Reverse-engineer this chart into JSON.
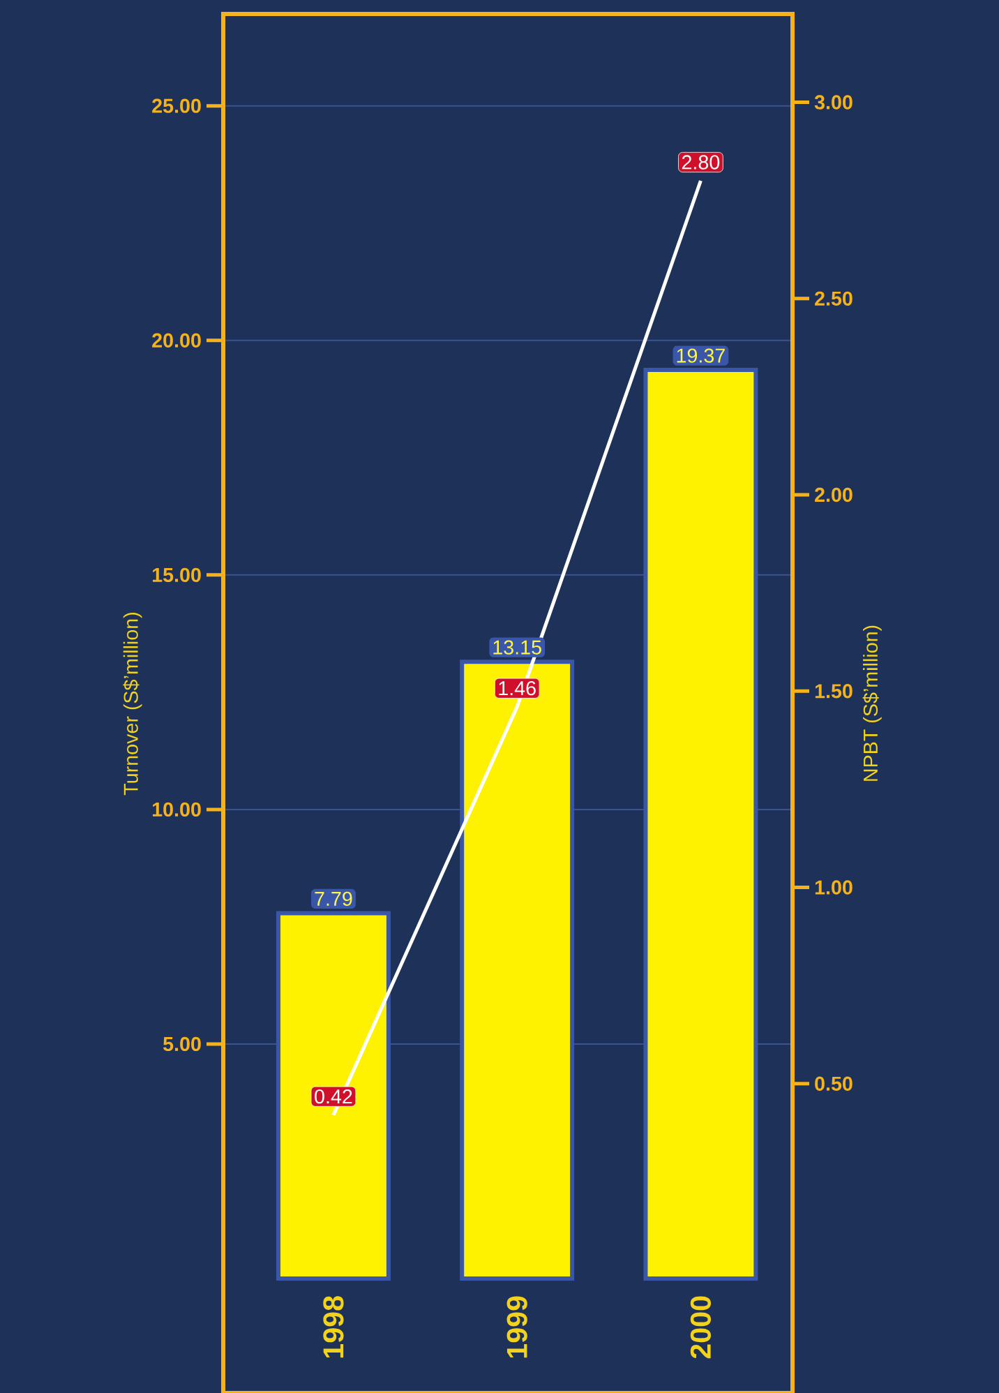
{
  "chart_data": {
    "type": "bar",
    "categories": [
      "1998",
      "1999",
      "2000"
    ],
    "ylabel": "Turnover (S$’million)",
    "y2label": "NPBT (S$’million)",
    "series": [
      {
        "color": "#fff200",
        "values": [
          7.79,
          13.15,
          19.37
        ],
        "value_labels": [
          "7.79",
          "13.15",
          "19.37"
        ]
      },
      {
        "type": "line",
        "axis": "y2",
        "color": "#ffffff",
        "values": [
          0.42,
          1.46,
          2.8
        ],
        "value_labels": [
          "0.42",
          "1.46",
          "2.80"
        ]
      }
    ],
    "ylim": [
      -2.44,
      26.96
    ],
    "yticks": [
      {
        "value": 5,
        "label": "5.00"
      },
      {
        "value": 10,
        "label": "10.00"
      },
      {
        "value": 15,
        "label": "15.00"
      },
      {
        "value": 20,
        "label": "20.00"
      },
      {
        "value": 25,
        "label": "25.00"
      }
    ],
    "y2lim": [
      -0.288,
      3.225
    ],
    "y2ticks": [
      {
        "value": 0.5,
        "label": "0.50"
      },
      {
        "value": 1,
        "label": "1.00"
      },
      {
        "value": 1.5,
        "label": "1.50"
      },
      {
        "value": 2,
        "label": "2.00"
      },
      {
        "value": 2.5,
        "label": "2.50"
      },
      {
        "value": 3,
        "label": "3.00"
      }
    ],
    "grid": "y"
  }
}
